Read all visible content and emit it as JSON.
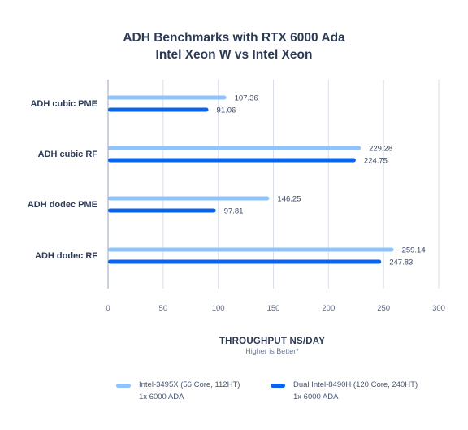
{
  "chart_data": {
    "type": "bar",
    "orientation": "horizontal",
    "title": "ADH Benchmarks with RTX 6000 Ada",
    "subtitle": "Intel Xeon W vs Intel Xeon",
    "xlabel": "THROUGHPUT NS/DAY",
    "xsublabel": "Higher is Better*",
    "xlim": [
      0,
      300
    ],
    "xticks": [
      0,
      50,
      100,
      150,
      200,
      250,
      300
    ],
    "categories": [
      "ADH cubic PME",
      "ADH cubic RF",
      "ADH dodec PME",
      "ADH dodec RF"
    ],
    "grid": true,
    "legend_position": "bottom",
    "series": [
      {
        "name": "Intel-3495X (56 Core, 112HT)",
        "name_line2": "1x 6000 ADA",
        "color": "#8ec3fb",
        "values": [
          107.36,
          229.28,
          146.25,
          259.14
        ],
        "labels": [
          "107.36",
          "229.28",
          "146.25",
          "259.14"
        ]
      },
      {
        "name": "Dual Intel-8490H (120 Core, 240HT)",
        "name_line2": "1x 6000 ADA",
        "color": "#0a63eb",
        "values": [
          91.06,
          224.75,
          97.81,
          247.83
        ],
        "labels": [
          "91.06",
          "224.75",
          "97.81",
          "247.83"
        ]
      }
    ]
  }
}
